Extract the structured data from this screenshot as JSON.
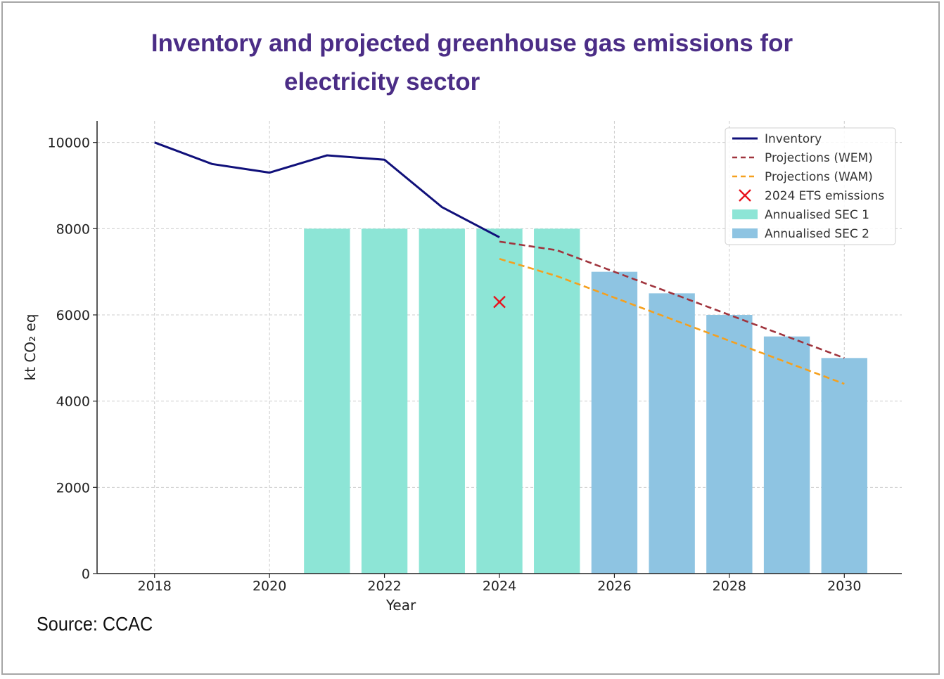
{
  "title_line1": "Inventory and projected greenhouse gas emissions for",
  "title_line2": "electricity sector",
  "source": "Source: CCAC",
  "chart_data": {
    "type": "bar",
    "xlabel": "Year",
    "ylabel": "kt CO₂ eq",
    "xlim": [
      2017.0,
      2031.0
    ],
    "ylim": [
      0,
      10500
    ],
    "x_ticks": [
      2018,
      2020,
      2022,
      2024,
      2026,
      2028,
      2030
    ],
    "y_ticks": [
      0,
      2000,
      4000,
      6000,
      8000,
      10000
    ],
    "grid": true,
    "legend_position": "top-right",
    "colors": {
      "inventory": "#10107a",
      "wem": "#a0343d",
      "wam": "#f5a01e",
      "ets": "#e8141e",
      "sec1": "#8de5d6",
      "sec2": "#8ec4e2"
    },
    "legend": [
      {
        "key": "inventory",
        "label": "Inventory",
        "kind": "line"
      },
      {
        "key": "wem",
        "label": "Projections (WEM)",
        "kind": "dashed"
      },
      {
        "key": "wam",
        "label": "Projections (WAM)",
        "kind": "dashed"
      },
      {
        "key": "ets",
        "label": "2024 ETS emissions",
        "kind": "x"
      },
      {
        "key": "sec1",
        "label": "Annualised SEC 1",
        "kind": "bar"
      },
      {
        "key": "sec2",
        "label": "Annualised SEC 2",
        "kind": "bar"
      }
    ],
    "series": {
      "inventory": {
        "x": [
          2018,
          2019,
          2020,
          2021,
          2022,
          2023,
          2024
        ],
        "y": [
          10000,
          9500,
          9300,
          9700,
          9600,
          8500,
          7800
        ]
      },
      "wem": {
        "x": [
          2024,
          2025,
          2026,
          2027,
          2028,
          2029,
          2030
        ],
        "y": [
          7700,
          7500,
          7000,
          6500,
          6000,
          5500,
          5000
        ]
      },
      "wam": {
        "x": [
          2024,
          2025,
          2026,
          2027,
          2028,
          2029,
          2030
        ],
        "y": [
          7300,
          6900,
          6400,
          5900,
          5400,
          4900,
          4400
        ]
      },
      "ets": {
        "x": [
          2024
        ],
        "y": [
          6300
        ]
      },
      "sec1": {
        "x": [
          2021,
          2022,
          2023,
          2024,
          2025
        ],
        "y": [
          8000,
          8000,
          8000,
          8000,
          8000
        ]
      },
      "sec2": {
        "x": [
          2026,
          2027,
          2028,
          2029,
          2030
        ],
        "y": [
          7000,
          6500,
          6000,
          5500,
          5000
        ]
      }
    }
  }
}
